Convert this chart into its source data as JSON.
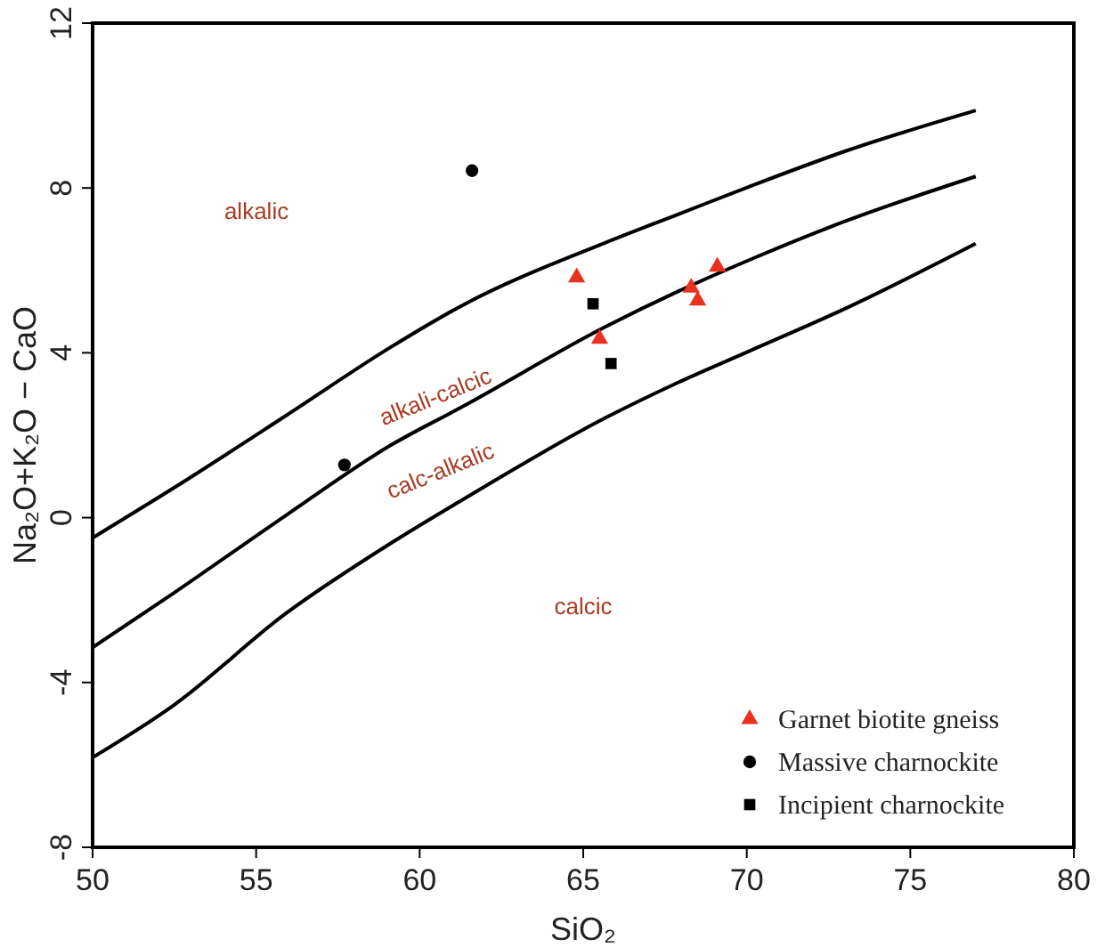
{
  "chart_data": {
    "type": "scatter",
    "xlabel": "SiO₂",
    "ylabel": "Na₂O+K₂O − CaO",
    "xlim": [
      50,
      80
    ],
    "ylim": [
      -8,
      12
    ],
    "xticks": [
      50,
      55,
      60,
      65,
      70,
      75,
      80
    ],
    "yticks": [
      -8,
      -4,
      0,
      4,
      8,
      12
    ],
    "grid": false,
    "legend": "bottom right",
    "series": [
      {
        "type": "line",
        "color": "#000000",
        "marker": "none",
        "x": [
          50,
          52.5,
          55.9,
          59.1,
          61.3,
          65.7,
          67.9,
          70.1,
          73.0,
          77.0
        ],
        "values": [
          -0.49,
          0.73,
          2.47,
          4.13,
          5.15,
          6.68,
          7.36,
          8.04,
          8.89,
          9.88
        ]
      },
      {
        "type": "line",
        "color": "#000000",
        "marker": "none",
        "x": [
          50,
          52.5,
          55.9,
          59.1,
          61.3,
          65.7,
          67.9,
          70.1,
          73.0,
          77.0
        ],
        "values": [
          -3.15,
          -1.82,
          0.05,
          1.75,
          2.69,
          4.64,
          5.49,
          6.26,
          7.19,
          8.28
        ]
      },
      {
        "type": "line",
        "color": "#000000",
        "marker": "none",
        "x": [
          50,
          52.5,
          55.9,
          59.1,
          61.3,
          65.7,
          67.9,
          70.1,
          73.0,
          77.0
        ],
        "values": [
          -5.82,
          -4.54,
          -2.33,
          -0.63,
          0.43,
          2.43,
          3.28,
          4.05,
          5.07,
          6.65
        ]
      },
      {
        "name": "Garnet biotite gneiss",
        "color": "#e8321e",
        "marker": "triangle",
        "x": [
          64.8,
          65.5,
          68.3,
          68.5,
          69.1
        ],
        "values": [
          5.83,
          4.34,
          5.58,
          5.27,
          6.09
        ]
      },
      {
        "name": "Massive charnockite",
        "color": "#000000",
        "marker": "circle",
        "x": [
          61.6,
          57.7
        ],
        "values": [
          8.42,
          1.28
        ]
      },
      {
        "name": "Incipient charnockite",
        "color": "#000000",
        "marker": "square",
        "x": [
          65.3,
          65.85
        ],
        "values": [
          5.19,
          3.74
        ]
      }
    ],
    "annotations": [
      "alkalic",
      "alkali-calcic",
      "calc-alkalic",
      "calcic"
    ]
  }
}
